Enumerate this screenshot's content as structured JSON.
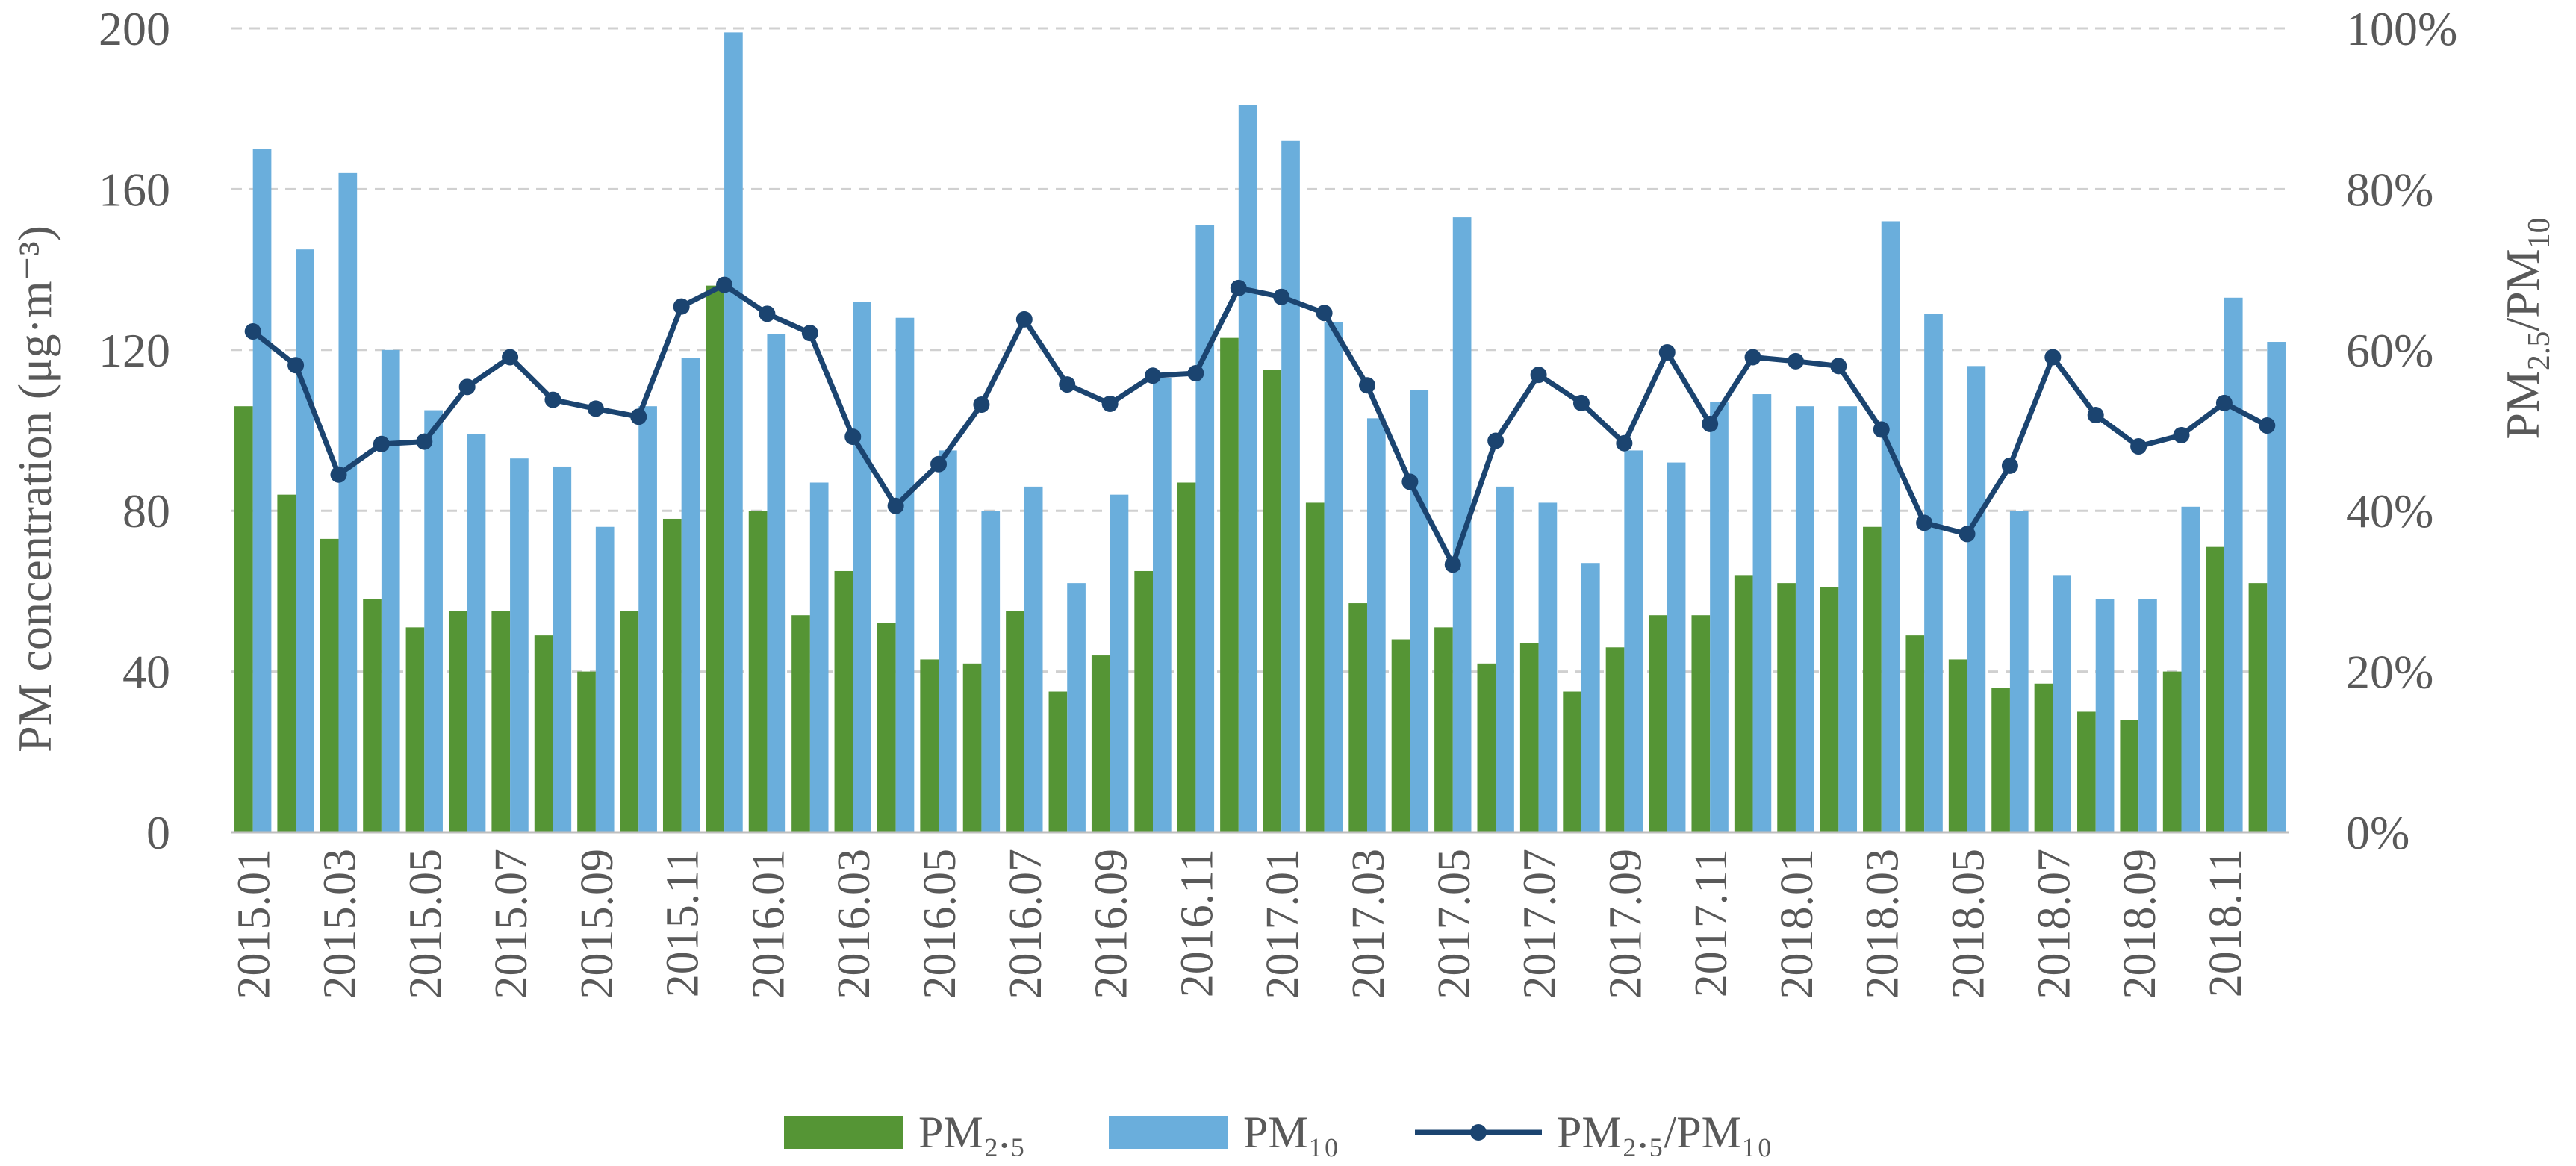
{
  "chart_data": {
    "type": "bar+line",
    "title": "",
    "xlabel": "",
    "ylabel": "PM concentration (μg·m⁻³)",
    "y2label": {
      "base": "PM",
      "sub1": "2.5",
      "mid": "/PM",
      "sub2": "10"
    },
    "ylim": [
      0,
      200
    ],
    "y2lim": [
      0,
      1
    ],
    "yticks": [
      "0",
      "40",
      "80",
      "120",
      "160",
      "200"
    ],
    "y2ticks": [
      "0%",
      "20%",
      "40%",
      "60%",
      "80%",
      "100%"
    ],
    "grid": true,
    "legend_position": "bottom",
    "legend": [
      {
        "label": "PM₂.₅",
        "kind": "bar"
      },
      {
        "label": "PM₁₀",
        "kind": "bar"
      },
      {
        "label": "PM₂.₅/PM₁₀",
        "kind": "line"
      }
    ],
    "xtick_labels": [
      "2015.01",
      "2015.03",
      "2015.05",
      "2015.07",
      "2015.09",
      "2015.11",
      "2016.01",
      "2016.03",
      "2016.05",
      "2016.07",
      "2016.09",
      "2016.11",
      "2017.01",
      "2017.03",
      "2017.05",
      "2017.07",
      "2017.09",
      "2017.11",
      "2018.01",
      "2018.03",
      "2018.05",
      "2018.07",
      "2018.09",
      "2018.11"
    ],
    "categories": [
      "2015.01",
      "2015.02",
      "2015.03",
      "2015.04",
      "2015.05",
      "2015.06",
      "2015.07",
      "2015.08",
      "2015.09",
      "2015.10",
      "2015.11",
      "2015.12",
      "2016.01",
      "2016.02",
      "2016.03",
      "2016.04",
      "2016.05",
      "2016.06",
      "2016.07",
      "2016.08",
      "2016.09",
      "2016.10",
      "2016.11",
      "2016.12",
      "2017.01",
      "2017.02",
      "2017.03",
      "2017.04",
      "2017.05",
      "2017.06",
      "2017.07",
      "2017.08",
      "2017.09",
      "2017.10",
      "2017.11",
      "2017.12",
      "2018.01",
      "2018.02",
      "2018.03",
      "2018.04",
      "2018.05",
      "2018.06",
      "2018.07",
      "2018.08",
      "2018.09",
      "2018.10",
      "2018.11",
      "2018.12"
    ],
    "series": [
      {
        "name": "PM₂.₅",
        "axis": "left",
        "color": "#559535",
        "values": [
          106,
          84,
          73,
          58,
          51,
          55,
          55,
          49,
          40,
          55,
          78,
          136,
          80,
          54,
          65,
          52,
          43,
          42,
          55,
          35,
          44,
          65,
          87,
          123,
          115,
          82,
          57,
          48,
          51,
          42,
          47,
          35,
          46,
          54,
          54,
          64,
          62,
          61,
          76,
          49,
          43,
          36,
          37,
          30,
          28,
          40,
          71,
          62
        ]
      },
      {
        "name": "PM₁₀",
        "axis": "left",
        "color": "#6AAEDC",
        "values": [
          170,
          145,
          164,
          120,
          105,
          99,
          93,
          91,
          76,
          106,
          118,
          199,
          124,
          87,
          132,
          128,
          95,
          80,
          86,
          62,
          84,
          113,
          151,
          181,
          172,
          127,
          103,
          110,
          153,
          86,
          82,
          67,
          95,
          92,
          107,
          109,
          106,
          106,
          152,
          129,
          116,
          80,
          64,
          58,
          58,
          81,
          133,
          122
        ]
      },
      {
        "name": "PM₂.₅/PM₁₀",
        "axis": "right",
        "color": "#1B4470",
        "values": [
          0.623,
          0.581,
          0.445,
          0.483,
          0.486,
          0.554,
          0.591,
          0.538,
          0.527,
          0.517,
          0.654,
          0.681,
          0.645,
          0.621,
          0.492,
          0.406,
          0.458,
          0.532,
          0.638,
          0.557,
          0.533,
          0.568,
          0.571,
          0.677,
          0.666,
          0.646,
          0.556,
          0.436,
          0.333,
          0.487,
          0.569,
          0.534,
          0.484,
          0.597,
          0.508,
          0.591,
          0.586,
          0.58,
          0.501,
          0.385,
          0.371,
          0.456,
          0.591,
          0.519,
          0.48,
          0.494,
          0.534,
          0.506
        ]
      }
    ]
  }
}
